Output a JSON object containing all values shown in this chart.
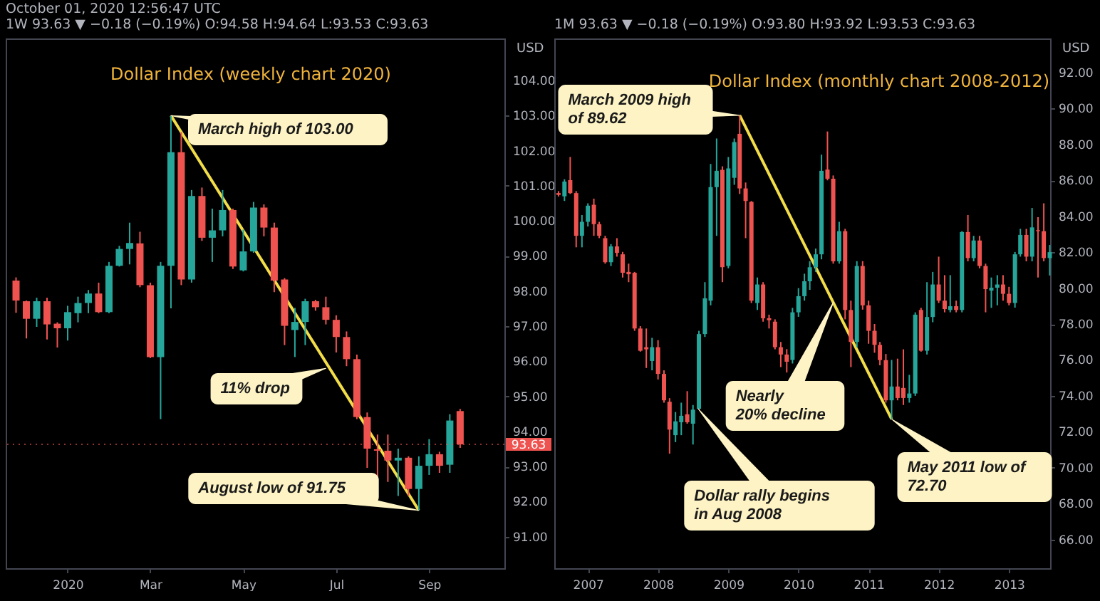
{
  "chart_data": [
    {
      "type": "candlestick",
      "title": "Dollar Index (weekly chart 2020)",
      "ylabel": "USD",
      "x": [
        "2019-12-02",
        "2019-12-09",
        "2019-12-16",
        "2019-12-23",
        "2019-12-30",
        "2020-01-06",
        "2020-01-13",
        "2020-01-20",
        "2020-01-27",
        "2020-02-03",
        "2020-02-10",
        "2020-02-17",
        "2020-02-24",
        "2020-03-02",
        "2020-03-09",
        "2020-03-16",
        "2020-03-23",
        "2020-03-30",
        "2020-04-06",
        "2020-04-13",
        "2020-04-20",
        "2020-04-27",
        "2020-05-04",
        "2020-05-11",
        "2020-05-18",
        "2020-05-25",
        "2020-06-01",
        "2020-06-08",
        "2020-06-15",
        "2020-06-22",
        "2020-06-29",
        "2020-07-06",
        "2020-07-13",
        "2020-07-20",
        "2020-07-27",
        "2020-08-03",
        "2020-08-10",
        "2020-08-17",
        "2020-08-24",
        "2020-08-31",
        "2020-09-07",
        "2020-09-14",
        "2020-09-21",
        "2020-09-28"
      ],
      "ohlc": [
        [
          98.3,
          98.39,
          97.38,
          97.73
        ],
        [
          97.71,
          97.73,
          96.65,
          97.21
        ],
        [
          97.21,
          97.81,
          96.98,
          97.71
        ],
        [
          97.71,
          97.81,
          96.62,
          97.05
        ],
        [
          97.07,
          97.11,
          96.39,
          96.94
        ],
        [
          96.94,
          97.58,
          96.59,
          97.4
        ],
        [
          97.37,
          97.84,
          97.11,
          97.66
        ],
        [
          97.66,
          98.03,
          97.37,
          97.93
        ],
        [
          97.93,
          98.24,
          97.37,
          97.4
        ],
        [
          97.4,
          98.83,
          97.37,
          98.72
        ],
        [
          98.72,
          99.29,
          98.7,
          99.2
        ],
        [
          99.2,
          99.95,
          98.76,
          99.37
        ],
        [
          99.36,
          99.69,
          98.11,
          98.17
        ],
        [
          98.17,
          98.24,
          96.09,
          96.12
        ],
        [
          96.12,
          98.83,
          94.35,
          98.72
        ],
        [
          98.72,
          103.0,
          97.51,
          101.96
        ],
        [
          101.96,
          102.53,
          98.17,
          98.33
        ],
        [
          98.33,
          100.88,
          98.24,
          100.71
        ],
        [
          100.71,
          100.95,
          99.43,
          99.52
        ],
        [
          99.52,
          100.35,
          98.83,
          99.73
        ],
        [
          99.73,
          100.88,
          99.56,
          100.31
        ],
        [
          100.31,
          100.35,
          98.63,
          98.7
        ],
        [
          98.59,
          99.75,
          98.56,
          99.13
        ],
        [
          99.13,
          100.54,
          99.09,
          100.38
        ],
        [
          100.38,
          100.47,
          99.56,
          99.81
        ],
        [
          99.81,
          99.95,
          97.97,
          98.3
        ],
        [
          98.33,
          98.37,
          96.46,
          97.01
        ],
        [
          96.89,
          97.52,
          96.12,
          97.12
        ],
        [
          97.12,
          97.78,
          96.46,
          97.71
        ],
        [
          97.71,
          97.75,
          97.44,
          97.54
        ],
        [
          97.54,
          97.84,
          97.05,
          97.18
        ],
        [
          97.18,
          97.31,
          96.25,
          96.69
        ],
        [
          96.69,
          96.85,
          95.86,
          96.06
        ],
        [
          96.06,
          96.19,
          94.35,
          94.41
        ],
        [
          94.41,
          94.54,
          92.96,
          93.51
        ],
        [
          93.49,
          93.91,
          92.63,
          93.45
        ],
        [
          93.45,
          93.91,
          92.56,
          93.17
        ],
        [
          93.17,
          93.51,
          92.16,
          93.25
        ],
        [
          93.25,
          93.29,
          92.16,
          92.36
        ],
        [
          92.36,
          93.29,
          91.75,
          93.02
        ],
        [
          93.02,
          93.78,
          92.76,
          93.35
        ],
        [
          93.35,
          93.42,
          92.82,
          93.02
        ],
        [
          93.05,
          94.49,
          92.82,
          94.31
        ],
        [
          94.58,
          94.64,
          93.53,
          93.63
        ]
      ],
      "colors": [
        "#ef5350",
        "#ef5350",
        "#26a69a",
        "#ef5350",
        "#ef5350",
        "#26a69a",
        "#26a69a",
        "#26a69a",
        "#ef5350",
        "#26a69a",
        "#26a69a",
        "#26a69a",
        "#ef5350",
        "#ef5350",
        "#26a69a",
        "#26a69a",
        "#ef5350",
        "#26a69a",
        "#ef5350",
        "#26a69a",
        "#26a69a",
        "#ef5350",
        "#26a69a",
        "#26a69a",
        "#ef5350",
        "#ef5350",
        "#ef5350",
        "#26a69a",
        "#26a69a",
        "#ef5350",
        "#ef5350",
        "#ef5350",
        "#ef5350",
        "#ef5350",
        "#ef5350",
        "#ef5350",
        "#ef5350",
        "#26a69a",
        "#ef5350",
        "#26a69a",
        "#26a69a",
        "#ef5350",
        "#26a69a",
        "#ef5350"
      ],
      "series": [
        {
          "type": "line",
          "x": [
            "2020-03-16",
            "2020-08-31"
          ],
          "values": [
            103.0,
            91.75
          ],
          "color": "#f2dd48"
        }
      ],
      "xlim": [
        "2019-11-25",
        "2020-10-28"
      ],
      "xticks": [
        {
          "value": "2020-01-06",
          "label": "2020"
        },
        {
          "value": "2020-03-02",
          "label": "Mar"
        },
        {
          "value": "2020-05-04",
          "label": "May"
        },
        {
          "value": "2020-07-06",
          "label": "Jul"
        },
        {
          "value": "2020-09-07",
          "label": "Sep"
        }
      ],
      "ylim": [
        90.1,
        105.2
      ],
      "yticks": [
        {
          "value": 91,
          "label": "91.00"
        },
        {
          "value": 92,
          "label": "92.00"
        },
        {
          "value": 93,
          "label": "93.00"
        },
        {
          "value": 94,
          "label": "94.00"
        },
        {
          "value": 95,
          "label": "95.00"
        },
        {
          "value": 96,
          "label": "96.00"
        },
        {
          "value": 97,
          "label": "97.00"
        },
        {
          "value": 98,
          "label": "98.00"
        },
        {
          "value": 99,
          "label": "99.00"
        },
        {
          "value": 100,
          "label": "100.00"
        },
        {
          "value": 101,
          "label": "101.00"
        },
        {
          "value": 102,
          "label": "102.00"
        },
        {
          "value": 103,
          "label": "103.00"
        },
        {
          "value": 104,
          "label": "104.00"
        }
      ],
      "ref_lines": [
        {
          "axis": "y",
          "value": 93.63,
          "label": "93.63",
          "color": "#ef5350",
          "line_style": "dotted"
        }
      ],
      "annotations": [
        "October 01, 2020 12:56:47 UTC",
        "1W 93.63 ▼ −0.18 (−0.19%) O:94.58 H:94.64 L:93.53 C:93.63",
        {
          "text": "March high of 103.00",
          "x": "2020-03-16",
          "y": 103.0
        },
        {
          "text": "11% drop",
          "x": "2020-06-29",
          "y": 95.8
        },
        {
          "text": "August low of 91.75",
          "x": "2020-08-31",
          "y": 91.75
        }
      ]
    },
    {
      "type": "candlestick",
      "title": "Dollar Index (monthly chart 2008-2012)",
      "ylabel": "USD",
      "x": [
        "2006-08",
        "2006-09",
        "2006-10",
        "2006-11",
        "2006-12",
        "2007-01",
        "2007-02",
        "2007-03",
        "2007-04",
        "2007-05",
        "2007-06",
        "2007-07",
        "2007-08",
        "2007-09",
        "2007-10",
        "2007-11",
        "2007-12",
        "2008-01",
        "2008-02",
        "2008-03",
        "2008-04",
        "2008-05",
        "2008-06",
        "2008-07",
        "2008-08",
        "2008-09",
        "2008-10",
        "2008-11",
        "2008-12",
        "2009-01",
        "2009-02",
        "2009-03",
        "2009-04",
        "2009-05",
        "2009-06",
        "2009-07",
        "2009-08",
        "2009-09",
        "2009-10",
        "2009-11",
        "2009-12",
        "2010-01",
        "2010-02",
        "2010-03",
        "2010-04",
        "2010-05",
        "2010-06",
        "2010-07",
        "2010-08",
        "2010-09",
        "2010-10",
        "2010-11",
        "2010-12",
        "2011-01",
        "2011-02",
        "2011-03",
        "2011-04",
        "2011-05",
        "2011-06",
        "2011-07",
        "2011-08",
        "2011-09",
        "2011-10",
        "2011-11",
        "2011-12",
        "2012-01",
        "2012-02",
        "2012-03",
        "2012-04",
        "2012-05",
        "2012-06",
        "2012-07",
        "2012-08",
        "2012-09",
        "2012-10",
        "2012-11",
        "2012-12",
        "2013-01",
        "2013-02",
        "2013-03",
        "2013-04",
        "2013-05",
        "2013-06",
        "2013-07",
        "2013-08"
      ],
      "ohlc": [
        [
          85.29,
          85.4,
          85.1,
          85.19
        ],
        [
          85.11,
          86.06,
          84.85,
          85.93
        ],
        [
          86.01,
          87.3,
          85.24,
          85.29
        ],
        [
          85.29,
          85.4,
          82.27,
          82.91
        ],
        [
          82.91,
          84.07,
          82.27,
          83.69
        ],
        [
          83.69,
          84.72,
          83.43,
          84.59
        ],
        [
          84.64,
          84.98,
          82.91,
          83.56
        ],
        [
          83.56,
          83.69,
          82.78,
          82.91
        ],
        [
          82.78,
          82.91,
          81.36,
          81.44
        ],
        [
          81.44,
          82.45,
          81.23,
          82.32
        ],
        [
          82.32,
          82.78,
          81.75,
          81.96
        ],
        [
          81.88,
          82.01,
          80.59,
          80.85
        ],
        [
          80.9,
          81.36,
          80.33,
          80.77
        ],
        [
          80.85,
          80.9,
          77.62,
          77.75
        ],
        [
          77.75,
          77.88,
          76.46,
          76.51
        ],
        [
          76.71,
          77.75,
          75.55,
          76.59
        ],
        [
          75.94,
          77.23,
          75.42,
          76.71
        ],
        [
          76.71,
          77.1,
          74.91,
          75.22
        ],
        [
          75.22,
          75.42,
          73.62,
          73.75
        ],
        [
          73.67,
          73.87,
          70.78,
          72.12
        ],
        [
          71.81,
          73.1,
          71.42,
          72.58
        ],
        [
          72.53,
          73.62,
          71.81,
          72.89
        ],
        [
          72.97,
          74.26,
          72.45,
          72.53
        ],
        [
          72.45,
          73.49,
          71.29,
          73.23
        ],
        [
          73.28,
          77.62,
          73.23,
          77.44
        ],
        [
          77.44,
          80.33,
          77.28,
          79.43
        ],
        [
          79.3,
          86.91,
          79.04,
          85.62
        ],
        [
          85.62,
          88.33,
          82.91,
          86.53
        ],
        [
          86.58,
          86.78,
          80.33,
          81.16
        ],
        [
          81.23,
          87.3,
          81.1,
          86.66
        ],
        [
          86.14,
          88.33,
          85.75,
          88.13
        ],
        [
          88.59,
          89.62,
          85.24,
          85.55
        ],
        [
          85.55,
          85.88,
          82.78,
          84.85
        ],
        [
          84.8,
          84.85,
          79.17,
          79.3
        ],
        [
          79.17,
          80.59,
          78.78,
          80.2
        ],
        [
          80.2,
          80.33,
          78.13,
          78.32
        ],
        [
          78.32,
          78.52,
          77.75,
          78.21
        ],
        [
          78.13,
          78.26,
          76.59,
          76.71
        ],
        [
          76.71,
          77.0,
          75.6,
          76.3
        ],
        [
          76.3,
          76.6,
          75.3,
          75.9
        ],
        [
          76.0,
          78.9,
          75.8,
          78.65
        ],
        [
          78.65,
          80.0,
          78.4,
          79.55
        ],
        [
          79.55,
          80.8,
          79.3,
          80.38
        ],
        [
          80.38,
          81.5,
          79.9,
          81.16
        ],
        [
          81.16,
          82.2,
          80.9,
          81.88
        ],
        [
          81.88,
          87.43,
          81.6,
          86.53
        ],
        [
          86.6,
          88.72,
          86.0,
          86.09
        ],
        [
          86.09,
          86.27,
          81.36,
          81.49
        ],
        [
          81.49,
          83.69,
          81.36,
          83.17
        ],
        [
          83.17,
          83.3,
          78.26,
          78.78
        ],
        [
          78.78,
          79.3,
          75.6,
          77.0
        ],
        [
          77.0,
          81.5,
          76.7,
          81.23
        ],
        [
          81.23,
          81.5,
          78.8,
          79.04
        ],
        [
          79.04,
          79.3,
          76.9,
          77.62
        ],
        [
          77.62,
          78.0,
          76.4,
          76.84
        ],
        [
          76.84,
          77.0,
          75.7,
          75.99
        ],
        [
          75.99,
          76.33,
          73.62,
          73.75
        ],
        [
          73.75,
          76.0,
          72.7,
          74.52
        ],
        [
          74.52,
          76.07,
          73.75,
          73.88
        ],
        [
          74.44,
          76.59,
          73.49,
          73.88
        ],
        [
          73.88,
          75.17,
          73.62,
          74.13
        ],
        [
          74.13,
          78.65,
          74.0,
          78.52
        ],
        [
          78.78,
          78.9,
          76.46,
          76.51
        ],
        [
          76.51,
          80.33,
          76.3,
          78.39
        ],
        [
          78.39,
          80.9,
          78.1,
          80.2
        ],
        [
          80.2,
          81.75,
          79.17,
          79.3
        ],
        [
          79.3,
          80.72,
          78.65,
          78.83
        ],
        [
          78.78,
          80.72,
          78.65,
          78.99
        ],
        [
          78.99,
          79.3,
          78.65,
          78.78
        ],
        [
          78.78,
          83.17,
          78.65,
          83.12
        ],
        [
          83.12,
          84.07,
          81.49,
          81.67
        ],
        [
          81.67,
          82.91,
          81.49,
          82.65
        ],
        [
          82.65,
          82.91,
          81.1,
          81.23
        ],
        [
          81.23,
          81.36,
          78.65,
          79.94
        ],
        [
          79.86,
          80.59,
          78.9,
          80.02
        ],
        [
          80.02,
          80.72,
          79.04,
          80.2
        ],
        [
          80.2,
          80.72,
          79.3,
          79.68
        ],
        [
          79.68,
          80.07,
          79.04,
          79.17
        ],
        [
          79.17,
          82.01,
          78.91,
          81.88
        ],
        [
          81.88,
          83.3,
          81.75,
          82.96
        ],
        [
          82.96,
          83.3,
          81.49,
          81.75
        ],
        [
          81.75,
          84.46,
          81.49,
          83.38
        ],
        [
          83.22,
          83.95,
          80.59,
          83.17
        ],
        [
          83.17,
          84.72,
          81.49,
          81.67
        ],
        [
          81.67,
          82.4,
          80.7,
          82.0
        ]
      ],
      "colors": [
        "#ef5350",
        "#26a69a",
        "#ef5350",
        "#ef5350",
        "#26a69a",
        "#26a69a",
        "#ef5350",
        "#ef5350",
        "#ef5350",
        "#26a69a",
        "#ef5350",
        "#ef5350",
        "#ef5350",
        "#ef5350",
        "#ef5350",
        "#ef5350",
        "#26a69a",
        "#ef5350",
        "#ef5350",
        "#ef5350",
        "#26a69a",
        "#26a69a",
        "#ef5350",
        "#26a69a",
        "#26a69a",
        "#26a69a",
        "#26a69a",
        "#26a69a",
        "#ef5350",
        "#26a69a",
        "#26a69a",
        "#ef5350",
        "#ef5350",
        "#ef5350",
        "#26a69a",
        "#ef5350",
        "#ef5350",
        "#ef5350",
        "#ef5350",
        "#ef5350",
        "#26a69a",
        "#26a69a",
        "#26a69a",
        "#26a69a",
        "#26a69a",
        "#26a69a",
        "#ef5350",
        "#ef5350",
        "#26a69a",
        "#ef5350",
        "#ef5350",
        "#26a69a",
        "#ef5350",
        "#ef5350",
        "#ef5350",
        "#ef5350",
        "#ef5350",
        "#26a69a",
        "#ef5350",
        "#ef5350",
        "#26a69a",
        "#26a69a",
        "#ef5350",
        "#26a69a",
        "#26a69a",
        "#ef5350",
        "#ef5350",
        "#26a69a",
        "#ef5350",
        "#26a69a",
        "#ef5350",
        "#26a69a",
        "#ef5350",
        "#ef5350",
        "#26a69a",
        "#26a69a",
        "#ef5350",
        "#ef5350",
        "#26a69a",
        "#26a69a",
        "#ef5350",
        "#26a69a",
        "#ef5350",
        "#ef5350",
        "#26a69a"
      ],
      "series": [
        {
          "type": "line",
          "x": [
            "2009-03",
            "2011-05"
          ],
          "values": [
            89.62,
            72.7
          ],
          "color": "#f2dd48"
        }
      ],
      "xlim": [
        "2006-07-10",
        "2013-08-03"
      ],
      "xticks": [
        {
          "value": "2007-01",
          "label": "2007"
        },
        {
          "value": "2008-01",
          "label": "2008"
        },
        {
          "value": "2009-01",
          "label": "2009"
        },
        {
          "value": "2010-01",
          "label": "2010"
        },
        {
          "value": "2011-01",
          "label": "2011"
        },
        {
          "value": "2012-01",
          "label": "2012"
        },
        {
          "value": "2013-01",
          "label": "2013"
        }
      ],
      "ylim": [
        64.4,
        93.9
      ],
      "yticks": [
        {
          "value": 66,
          "label": "66.00"
        },
        {
          "value": 68,
          "label": "68.00"
        },
        {
          "value": 70,
          "label": "70.00"
        },
        {
          "value": 72,
          "label": "72.00"
        },
        {
          "value": 74,
          "label": "74.00"
        },
        {
          "value": 76,
          "label": "76.00"
        },
        {
          "value": 78,
          "label": "78.00"
        },
        {
          "value": 80,
          "label": "80.00"
        },
        {
          "value": 82,
          "label": "82.00"
        },
        {
          "value": 84,
          "label": "84.00"
        },
        {
          "value": 86,
          "label": "86.00"
        },
        {
          "value": 88,
          "label": "88.00"
        },
        {
          "value": 90,
          "label": "90.00"
        },
        {
          "value": 92,
          "label": "92.00"
        }
      ],
      "annotations": [
        "1M 93.63 ▼ −0.18 (−0.19%) O:93.80 H:93.92 L:93.53 C:93.63",
        {
          "text": "March 2009 high\nof 89.62",
          "x": "2009-03",
          "y": 89.62
        },
        "Nearly\n20% decline",
        "Dollar rally begins\nin Aug 2008",
        {
          "text": "May 2011 low of\n72.70",
          "x": "2011-05",
          "y": 72.7
        }
      ]
    }
  ]
}
